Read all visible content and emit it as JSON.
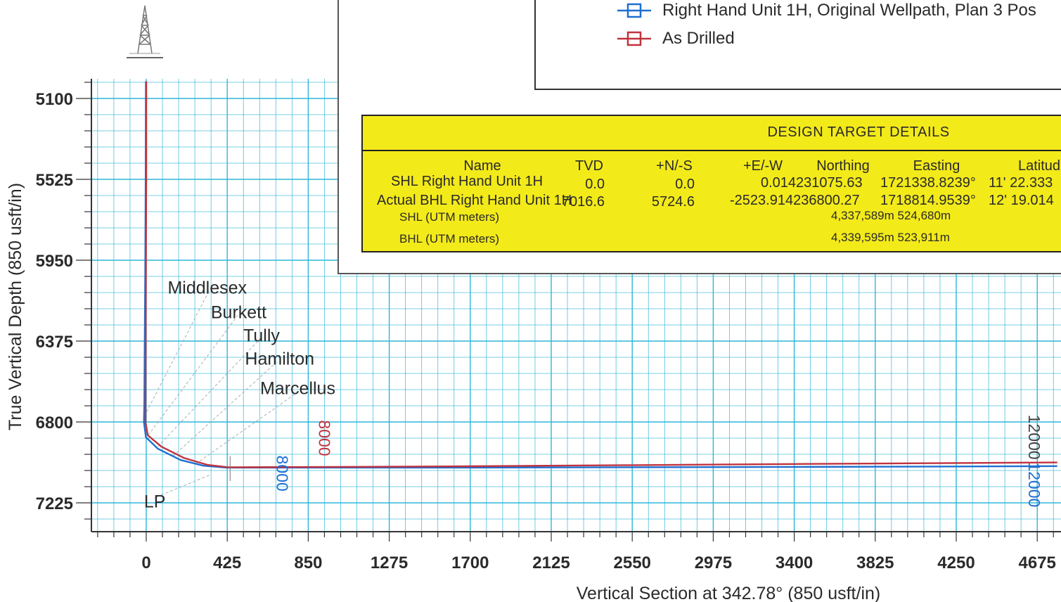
{
  "chart_data": {
    "type": "line",
    "xlabel": "Vertical Section at 342.78° (850 usft/in)",
    "ylabel": "True Vertical Depth (850 usft/in)",
    "x_ticks": [
      0,
      425,
      850,
      1275,
      1700,
      2125,
      2550,
      2975,
      3400,
      3825,
      4250,
      4675
    ],
    "y_ticks": [
      5100,
      5525,
      5950,
      6375,
      6800,
      7225
    ],
    "xlim": [
      -290,
      4780
    ],
    "ylim": [
      5010,
      7390
    ],
    "y_inverted": true,
    "grid": true,
    "series": [
      {
        "name": "Right Hand Unit 1H, Original Wellpath, Plan 3 Pos",
        "color": "#1f6fd1",
        "x": [
          -2,
          -3,
          -5,
          -8,
          -10,
          -12,
          -2,
          60,
          180,
          300,
          420,
          850,
          1700,
          2550,
          3400,
          4250,
          4780
        ],
        "y": [
          5010,
          5500,
          6000,
          6400,
          6700,
          6800,
          6880,
          6940,
          7000,
          7030,
          7040,
          7040,
          7040,
          7038,
          7036,
          7034,
          7032
        ]
      },
      {
        "name": "As Drilled",
        "color": "#c0333f",
        "x": [
          0,
          0,
          -2,
          -3,
          -4,
          -4,
          8,
          80,
          200,
          320,
          430,
          850,
          1700,
          2550,
          3400,
          4250,
          4780
        ],
        "y": [
          5010,
          5500,
          6000,
          6400,
          6700,
          6800,
          6870,
          6930,
          6990,
          7025,
          7038,
          7037,
          7033,
          7027,
          7021,
          7016,
          7013
        ]
      }
    ],
    "formations": [
      {
        "name": "Middlesex",
        "x": 320,
        "y": 6092
      },
      {
        "name": "Burkett",
        "x": 485,
        "y": 6222
      },
      {
        "name": "Tully",
        "x": 605,
        "y": 6343
      },
      {
        "name": "Hamilton",
        "x": 700,
        "y": 6465
      },
      {
        "name": "Marcellus",
        "x": 795,
        "y": 6620
      },
      {
        "name": "LP",
        "x": 45,
        "y": 7215
      }
    ],
    "md_markers": [
      {
        "label": "8000",
        "color": "#c0333f",
        "x": 905,
        "y": 6885,
        "rotate": 90
      },
      {
        "label": "8000",
        "color": "#1f6fd1",
        "x": 685,
        "y": 7070,
        "rotate": 90
      },
      {
        "label": "12000",
        "color": "#444444",
        "x": 4630,
        "y": 6880,
        "rotate": 90
      },
      {
        "label": "12000",
        "color": "#1f6fd1",
        "x": 4630,
        "y": 7130,
        "rotate": 90
      }
    ]
  },
  "legend": {
    "items": [
      {
        "label": "Right Hand Unit 1H, Original Wellpath, Plan 3 Pos",
        "color": "#1f6fd1"
      },
      {
        "label": "As Drilled",
        "color": "#c0333f"
      }
    ]
  },
  "targets": {
    "title": "DESIGN TARGET DETAILS",
    "headers": {
      "name": "Name",
      "tvd": "TVD",
      "ns": "+N/-S",
      "ew": "+E/-W",
      "northing": "Northing",
      "easting": "Easting",
      "latitude": "Latitud"
    },
    "rows": [
      {
        "name": "SHL Right Hand Unit 1H",
        "tvd": "0.0",
        "ns": "0.0",
        "ew": "0.014231075.63",
        "easting": "1721338.8239°",
        "lat": "11' 22.333"
      },
      {
        "name": "Actual BHL Right Hand Unit 1H",
        "tvd": "7016.6",
        "ns": "5724.6",
        "ew": "-2523.914236800.27",
        "easting": "1718814.9539°",
        "lat": "12' 19.014"
      }
    ],
    "utm": [
      {
        "label": "SHL (UTM meters)",
        "value": "4,337,589m 524,680m"
      },
      {
        "label": "BHL  (UTM meters)",
        "value": "4,339,595m 523,911m"
      }
    ]
  },
  "colors": {
    "grid": "#2fb5d8",
    "frame": "#333333",
    "target_box": "#f3ea1a"
  },
  "icons": {
    "rig": "drilling-rig-icon"
  }
}
